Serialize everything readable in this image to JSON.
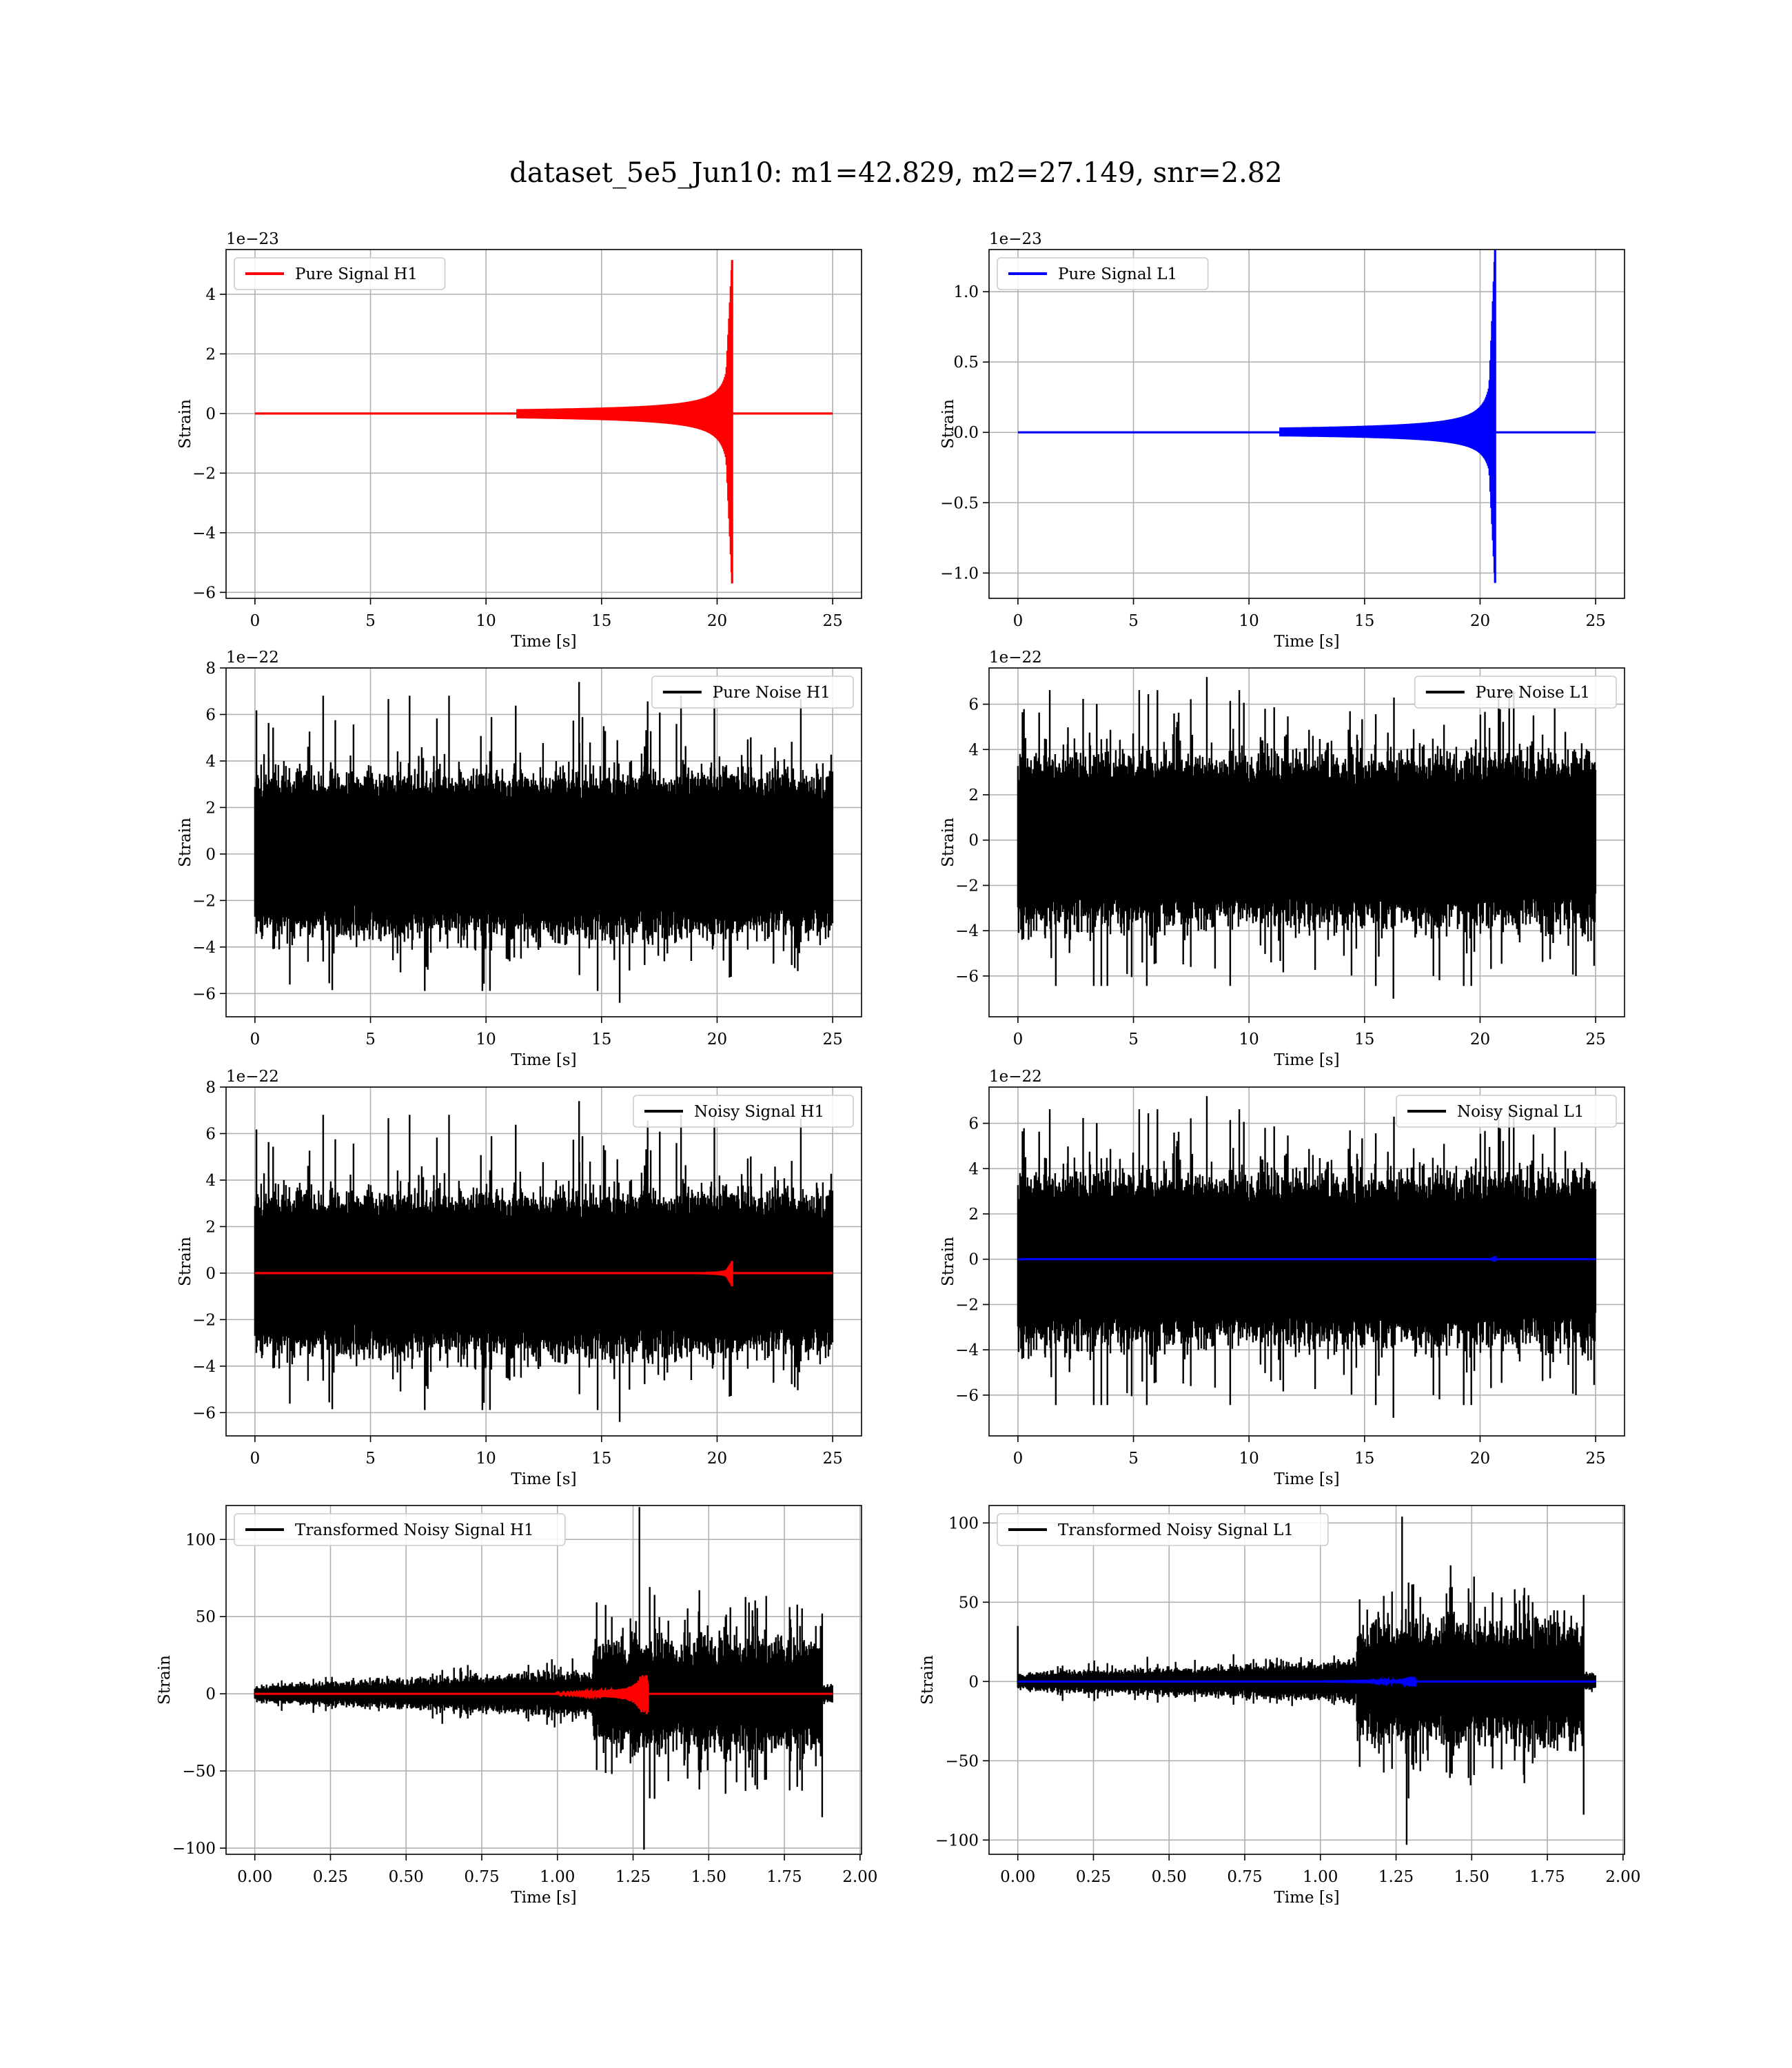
{
  "figure": {
    "title": "dataset_5e5_Jun10: m1=42.829, m2=27.149, snr=2.82"
  },
  "chart_data": [
    {
      "type": "line",
      "title": "",
      "xlabel": "Time [s]",
      "ylabel": "Strain",
      "offset_text": "1e−23",
      "xlim": [
        -1.25,
        26.25
      ],
      "ylim": [
        -6.2,
        5.5
      ],
      "xticks": [
        0,
        5,
        10,
        15,
        20,
        25
      ],
      "xtick_labels": [
        "0",
        "5",
        "10",
        "15",
        "20",
        "25"
      ],
      "yticks": [
        -6,
        -4,
        -2,
        0,
        2,
        4
      ],
      "ytick_labels": [
        "−6",
        "−4",
        "−2",
        "0",
        "2",
        "4"
      ],
      "grid": true,
      "legend_position": "upper-left",
      "series": [
        {
          "name": "Pure Signal H1",
          "color": "#ff0000",
          "kind": "chirp",
          "x_range": [
            0,
            25
          ],
          "merger_x": 20.65,
          "peak_pos": 5.15,
          "peak_neg": -5.7,
          "pre_merger_amp": 1.4
        }
      ]
    },
    {
      "type": "line",
      "title": "",
      "xlabel": "Time [s]",
      "ylabel": "Strain",
      "offset_text": "1e−23",
      "xlim": [
        -1.25,
        26.25
      ],
      "ylim": [
        -1.18,
        1.3
      ],
      "xticks": [
        0,
        5,
        10,
        15,
        20,
        25
      ],
      "xtick_labels": [
        "0",
        "5",
        "10",
        "15",
        "20",
        "25"
      ],
      "yticks": [
        -1.0,
        -0.5,
        0.0,
        0.5,
        1.0
      ],
      "ytick_labels": [
        "−1.0",
        "−0.5",
        "0.0",
        "0.5",
        "1.0"
      ],
      "grid": true,
      "legend_position": "upper-left",
      "series": [
        {
          "name": "Pure Signal L1",
          "color": "#0000ff",
          "kind": "chirp",
          "x_range": [
            0,
            25
          ],
          "merger_x": 20.65,
          "peak_pos": 1.3,
          "peak_neg": -1.07,
          "pre_merger_amp": 0.33
        }
      ]
    },
    {
      "type": "line",
      "title": "",
      "xlabel": "Time [s]",
      "ylabel": "Strain",
      "offset_text": "1e−22",
      "xlim": [
        -1.25,
        26.25
      ],
      "ylim": [
        -7.0,
        8.0
      ],
      "xticks": [
        0,
        5,
        10,
        15,
        20,
        25
      ],
      "xtick_labels": [
        "0",
        "5",
        "10",
        "15",
        "20",
        "25"
      ],
      "yticks": [
        -6,
        -4,
        -2,
        0,
        2,
        4,
        6,
        8
      ],
      "ytick_labels": [
        "−6",
        "−4",
        "−2",
        "0",
        "2",
        "4",
        "6",
        "8"
      ],
      "grid": true,
      "legend_position": "upper-right",
      "series": [
        {
          "name": "Pure Noise H1",
          "color": "#000000",
          "kind": "noise",
          "x_range": [
            0,
            25
          ],
          "band": 3.0,
          "max": 7.4,
          "min": -6.4,
          "seed": 11
        }
      ]
    },
    {
      "type": "line",
      "title": "",
      "xlabel": "Time [s]",
      "ylabel": "Strain",
      "offset_text": "1e−22",
      "xlim": [
        -1.25,
        26.25
      ],
      "ylim": [
        -7.8,
        7.6
      ],
      "xticks": [
        0,
        5,
        10,
        15,
        20,
        25
      ],
      "xtick_labels": [
        "0",
        "5",
        "10",
        "15",
        "20",
        "25"
      ],
      "yticks": [
        -6,
        -4,
        -2,
        0,
        2,
        4,
        6
      ],
      "ytick_labels": [
        "−6",
        "−4",
        "−2",
        "0",
        "2",
        "4",
        "6"
      ],
      "grid": true,
      "legend_position": "upper-right",
      "series": [
        {
          "name": "Pure Noise L1",
          "color": "#000000",
          "kind": "noise",
          "x_range": [
            0,
            25
          ],
          "band": 3.2,
          "max": 7.2,
          "min": -7.0,
          "seed": 23
        }
      ]
    },
    {
      "type": "line",
      "title": "",
      "xlabel": "Time [s]",
      "ylabel": "Strain",
      "offset_text": "1e−22",
      "xlim": [
        -1.25,
        26.25
      ],
      "ylim": [
        -7.0,
        8.0
      ],
      "xticks": [
        0,
        5,
        10,
        15,
        20,
        25
      ],
      "xtick_labels": [
        "0",
        "5",
        "10",
        "15",
        "20",
        "25"
      ],
      "yticks": [
        -6,
        -4,
        -2,
        0,
        2,
        4,
        6,
        8
      ],
      "ytick_labels": [
        "−6",
        "−4",
        "−2",
        "0",
        "2",
        "4",
        "6",
        "8"
      ],
      "grid": true,
      "legend_position": "upper-right",
      "series": [
        {
          "name": "Noisy Signal H1",
          "color": "#000000",
          "kind": "noise",
          "x_range": [
            0,
            25
          ],
          "band": 3.0,
          "max": 7.4,
          "min": -6.4,
          "seed": 11
        },
        {
          "color": "#ff0000",
          "kind": "chirp",
          "x_range": [
            0,
            25
          ],
          "merger_x": 20.65,
          "peak_pos": 0.52,
          "peak_neg": -0.57,
          "pre_merger_amp": 0.14
        }
      ]
    },
    {
      "type": "line",
      "title": "",
      "xlabel": "Time [s]",
      "ylabel": "Strain",
      "offset_text": "1e−22",
      "xlim": [
        -1.25,
        26.25
      ],
      "ylim": [
        -7.8,
        7.6
      ],
      "xticks": [
        0,
        5,
        10,
        15,
        20,
        25
      ],
      "xtick_labels": [
        "0",
        "5",
        "10",
        "15",
        "20",
        "25"
      ],
      "yticks": [
        -6,
        -4,
        -2,
        0,
        2,
        4,
        6
      ],
      "ytick_labels": [
        "−6",
        "−4",
        "−2",
        "0",
        "2",
        "4",
        "6"
      ],
      "grid": true,
      "legend_position": "upper-right",
      "series": [
        {
          "name": "Noisy Signal L1",
          "color": "#000000",
          "kind": "noise",
          "x_range": [
            0,
            25
          ],
          "band": 3.2,
          "max": 7.2,
          "min": -7.0,
          "seed": 23
        },
        {
          "color": "#0000ff",
          "kind": "chirp",
          "x_range": [
            0,
            25
          ],
          "merger_x": 20.65,
          "peak_pos": 0.13,
          "peak_neg": -0.11,
          "pre_merger_amp": 0.03
        }
      ]
    },
    {
      "type": "line",
      "title": "",
      "xlabel": "Time [s]",
      "ylabel": "Strain",
      "offset_text": "",
      "xlim": [
        -0.095,
        2.005
      ],
      "ylim": [
        -104,
        122
      ],
      "xticks": [
        0.0,
        0.25,
        0.5,
        0.75,
        1.0,
        1.25,
        1.5,
        1.75,
        2.0
      ],
      "xtick_labels": [
        "0.00",
        "0.25",
        "0.50",
        "0.75",
        "1.00",
        "1.25",
        "1.50",
        "1.75",
        "2.00"
      ],
      "yticks": [
        -100,
        -50,
        0,
        50,
        100
      ],
      "ytick_labels": [
        "−100",
        "−50",
        "0",
        "50",
        "100"
      ],
      "grid": true,
      "legend_position": "upper-left",
      "series": [
        {
          "name": "Transformed Noisy Signal H1",
          "color": "#000000",
          "kind": "tnoise",
          "x_range": [
            0,
            1.91
          ],
          "seg1_end": 1.12,
          "seg1_amp": [
            6,
            16
          ],
          "seg2_end": 1.875,
          "seg2_amp": 40,
          "seg2_max": 121,
          "seg2_min": -101,
          "seed": 37
        },
        {
          "color": "#ff0000",
          "kind": "tchirp",
          "x_range": [
            0,
            1.91
          ],
          "merger_x": 1.295,
          "peak": 12
        }
      ]
    },
    {
      "type": "line",
      "title": "",
      "xlabel": "Time [s]",
      "ylabel": "Strain",
      "offset_text": "",
      "xlim": [
        -0.095,
        2.005
      ],
      "ylim": [
        -109,
        111
      ],
      "xticks": [
        0.0,
        0.25,
        0.5,
        0.75,
        1.0,
        1.25,
        1.5,
        1.75,
        2.0
      ],
      "xtick_labels": [
        "0.00",
        "0.25",
        "0.50",
        "0.75",
        "1.00",
        "1.25",
        "1.50",
        "1.75",
        "2.00"
      ],
      "yticks": [
        -100,
        -50,
        0,
        50,
        100
      ],
      "ytick_labels": [
        "−100",
        "−50",
        "0",
        "50",
        "100"
      ],
      "grid": true,
      "legend_position": "upper-left",
      "series": [
        {
          "name": "Transformed Noisy Signal L1",
          "color": "#000000",
          "kind": "tnoise",
          "x_range": [
            0,
            1.91
          ],
          "seg1_end": 1.12,
          "seg1_amp": [
            6,
            14
          ],
          "seg2_end": 1.87,
          "seg2_amp": 42,
          "seg2_max": 104,
          "seg2_min": -103,
          "spike_x": 0.0,
          "spike_y": 35,
          "seed": 53
        },
        {
          "color": "#0000ff",
          "kind": "tchirp",
          "x_range": [
            0,
            1.91
          ],
          "merger_x": 1.31,
          "peak": 3
        }
      ]
    }
  ]
}
